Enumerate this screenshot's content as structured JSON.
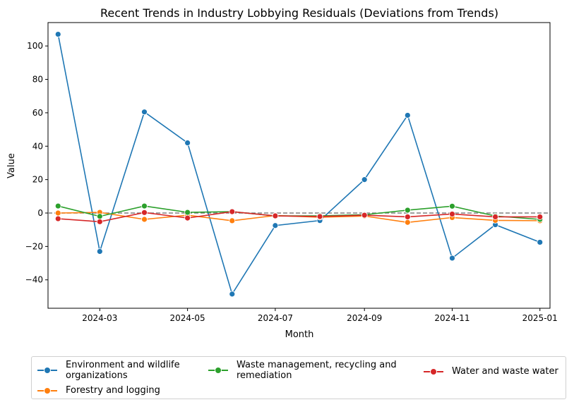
{
  "chart_data": {
    "type": "line",
    "title": "Recent Trends in Industry Lobbying Residuals (Deviations from Trends)",
    "xlabel": "Month",
    "ylabel": "Value",
    "x": [
      "2024-02-01",
      "2024-03-01",
      "2024-04-01",
      "2024-05-01",
      "2024-06-01",
      "2024-07-01",
      "2024-08-01",
      "2024-09-01",
      "2024-10-01",
      "2024-11-01",
      "2024-12-01",
      "2025-01-01"
    ],
    "xticks": [
      "2024-03",
      "2024-05",
      "2024-07",
      "2024-09",
      "2024-11",
      "2025-01"
    ],
    "yticks": [
      -40,
      -20,
      0,
      20,
      40,
      60,
      80,
      100
    ],
    "ylim": [
      -57,
      114
    ],
    "reference_line": {
      "y": 0,
      "style": "dashed",
      "color": "#808080"
    },
    "grid": false,
    "legend_placement": "bottom",
    "series": [
      {
        "name": "Environment and wildlife organizations",
        "color": "#1f77b4",
        "values": [
          107,
          -23,
          60.5,
          42,
          -48.5,
          -7.5,
          -4.5,
          20,
          58.5,
          -27,
          -7,
          -17.5
        ]
      },
      {
        "name": "Forestry and logging",
        "color": "#ff7f0e",
        "values": [
          0,
          0.4,
          -3.8,
          -1.3,
          -4.6,
          -1.5,
          -2.5,
          -1.8,
          -5.6,
          -2.7,
          -4.4,
          -4.6
        ]
      },
      {
        "name": "Waste management, recycling and remediation",
        "color": "#2ca02c",
        "values": [
          4.2,
          -2,
          4.2,
          0.4,
          0.8,
          -1.7,
          -1.7,
          -1,
          1.7,
          4.1,
          -1.8,
          -3.8
        ]
      },
      {
        "name": "Water and waste water",
        "color": "#d62728",
        "values": [
          -3.4,
          -5.2,
          0.3,
          -3,
          0.8,
          -1.7,
          -2.1,
          -1.3,
          -2.3,
          -0.6,
          -2.3,
          -2.3
        ]
      }
    ]
  }
}
